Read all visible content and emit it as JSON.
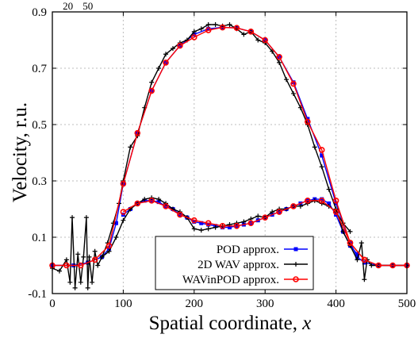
{
  "chart_data": {
    "type": "line",
    "xlabel": "Spatial coordinate, ",
    "xlabel_var": "x",
    "ylabel": "Velocity, r.u.",
    "xlim": [
      0,
      500
    ],
    "ylim": [
      -0.1,
      0.9
    ],
    "grid": true,
    "legend_placement": "bottom-right",
    "xticks": [
      0,
      100,
      200,
      300,
      400,
      500
    ],
    "yticks": [
      -0.1,
      0.1,
      0.3,
      0.5,
      0.7,
      0.9
    ],
    "xtick_labels": [
      "0",
      "100",
      "200",
      "300",
      "400",
      "500"
    ],
    "ytick_labels": [
      "-0.1",
      "0.1",
      "0.3",
      "0.5",
      "0.7",
      "0.9"
    ],
    "top_annotations": [
      {
        "text": "20",
        "x": 22
      },
      {
        "text": "50",
        "x": 50
      }
    ],
    "series": [
      {
        "name": "POD approx.",
        "color": "#0000ff",
        "marker": "square",
        "x": [
          0,
          30,
          50,
          70,
          80,
          90,
          100,
          120,
          140,
          160,
          180,
          200,
          220,
          240,
          260,
          280,
          300,
          320,
          340,
          360,
          380,
          400,
          420,
          430,
          440,
          460,
          480,
          500
        ],
        "y": [
          0.0,
          0.0,
          0.01,
          0.03,
          0.06,
          0.15,
          0.29,
          0.47,
          0.62,
          0.72,
          0.78,
          0.82,
          0.84,
          0.845,
          0.843,
          0.83,
          0.8,
          0.74,
          0.65,
          0.52,
          0.39,
          0.22,
          0.08,
          0.03,
          0.01,
          0.0,
          0.0,
          0.0
        ]
      },
      {
        "name": "POD approx.",
        "color": "#0000ff",
        "marker": "square",
        "x": [
          100,
          110,
          120,
          130,
          140,
          150,
          160,
          170,
          180,
          190,
          200,
          210,
          220,
          230,
          240,
          250,
          260,
          270,
          280,
          290,
          300,
          310,
          320,
          330,
          340,
          350,
          360,
          370,
          380,
          390,
          400,
          410,
          420,
          430
        ],
        "y": [
          0.18,
          0.2,
          0.22,
          0.23,
          0.23,
          0.225,
          0.21,
          0.2,
          0.18,
          0.17,
          0.155,
          0.15,
          0.145,
          0.14,
          0.135,
          0.135,
          0.14,
          0.145,
          0.15,
          0.16,
          0.17,
          0.18,
          0.19,
          0.2,
          0.21,
          0.22,
          0.23,
          0.235,
          0.235,
          0.22,
          0.18,
          0.12,
          0.07,
          0.04
        ]
      },
      {
        "name": "2D WAV approx.",
        "color": "#000000",
        "marker": "plus",
        "x": [
          0,
          10,
          20,
          25,
          28,
          32,
          36,
          40,
          44,
          48,
          50,
          52,
          56,
          60,
          64,
          70,
          78,
          86,
          94,
          100,
          110,
          120,
          130,
          140,
          150,
          160,
          170,
          180,
          190,
          200,
          210,
          220,
          230,
          240,
          250,
          260,
          270,
          280,
          290,
          300,
          310,
          320,
          330,
          340,
          350,
          360,
          370,
          380,
          390,
          400,
          410,
          420,
          430,
          436,
          440,
          444,
          450,
          460,
          480,
          500
        ],
        "y": [
          -0.01,
          -0.02,
          0.02,
          -0.06,
          0.17,
          -0.08,
          0.04,
          -0.06,
          0.03,
          0.17,
          -0.08,
          0.03,
          -0.06,
          0.05,
          0.0,
          0.03,
          0.08,
          0.15,
          0.22,
          0.3,
          0.42,
          0.46,
          0.56,
          0.65,
          0.7,
          0.75,
          0.77,
          0.79,
          0.8,
          0.83,
          0.84,
          0.855,
          0.855,
          0.85,
          0.855,
          0.84,
          0.82,
          0.83,
          0.8,
          0.79,
          0.76,
          0.72,
          0.66,
          0.61,
          0.56,
          0.5,
          0.42,
          0.35,
          0.27,
          0.2,
          0.12,
          0.07,
          0.02,
          0.08,
          -0.05,
          0.02,
          0.0,
          0.0,
          0.0,
          0.0
        ]
      },
      {
        "name": "2D WAV approx.",
        "color": "#000000",
        "marker": "plus",
        "x": [
          70,
          80,
          90,
          100,
          110,
          120,
          130,
          140,
          150,
          160,
          170,
          180,
          190,
          200,
          210,
          220,
          230,
          240,
          250,
          260,
          270,
          280,
          290,
          300,
          310,
          320,
          330,
          340,
          350,
          360,
          370,
          380,
          390,
          400,
          410,
          420
        ],
        "y": [
          0.03,
          0.05,
          0.1,
          0.16,
          0.2,
          0.22,
          0.235,
          0.24,
          0.235,
          0.22,
          0.2,
          0.19,
          0.17,
          0.13,
          0.125,
          0.13,
          0.135,
          0.14,
          0.145,
          0.15,
          0.155,
          0.165,
          0.175,
          0.17,
          0.19,
          0.2,
          0.2,
          0.21,
          0.21,
          0.22,
          0.23,
          0.22,
          0.21,
          0.19,
          0.15,
          0.12
        ]
      },
      {
        "name": "WAVinPOD approx.",
        "color": "#ff0000",
        "marker": "circle",
        "x": [
          0,
          20,
          40,
          60,
          80,
          100,
          120,
          140,
          160,
          180,
          200,
          220,
          240,
          260,
          280,
          300,
          320,
          340,
          360,
          380,
          400,
          420,
          440,
          460,
          480,
          500
        ],
        "y": [
          0.0,
          0.0,
          0.0,
          0.02,
          0.07,
          0.29,
          0.47,
          0.62,
          0.72,
          0.78,
          0.81,
          0.835,
          0.845,
          0.843,
          0.83,
          0.8,
          0.74,
          0.645,
          0.51,
          0.41,
          0.23,
          0.08,
          0.02,
          0.0,
          0.0,
          0.0
        ]
      },
      {
        "name": "WAVinPOD approx.",
        "color": "#ff0000",
        "marker": "circle",
        "x": [
          100,
          120,
          140,
          160,
          180,
          200,
          220,
          240,
          260,
          280,
          300,
          320,
          340,
          360,
          380,
          400,
          420,
          440
        ],
        "y": [
          0.19,
          0.22,
          0.23,
          0.21,
          0.18,
          0.16,
          0.15,
          0.14,
          0.14,
          0.15,
          0.17,
          0.19,
          0.21,
          0.23,
          0.23,
          0.19,
          0.08,
          0.02
        ]
      }
    ],
    "legend": [
      {
        "label": "POD approx.",
        "color": "#0000ff",
        "marker": "square"
      },
      {
        "label": "2D WAV approx.",
        "color": "#000000",
        "marker": "plus"
      },
      {
        "label": "WAVinPOD approx.",
        "color": "#ff0000",
        "marker": "circle"
      }
    ]
  }
}
